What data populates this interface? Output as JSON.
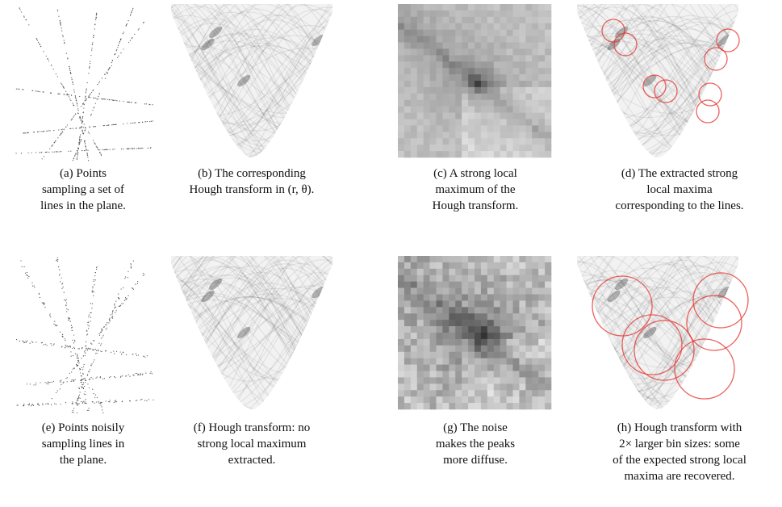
{
  "figures": [
    {
      "lines": [
        "(a) Points",
        "sampling a set of",
        "lines in the plane."
      ]
    },
    {
      "lines": [
        "(b) The corresponding",
        "Hough transform in (r, θ)."
      ]
    },
    {
      "lines": [
        "(c) A strong local",
        "maximum of the",
        "Hough transform."
      ]
    },
    {
      "lines": [
        "(d) The extracted strong",
        "local maxima",
        "corresponding to the lines."
      ]
    },
    {
      "lines": [
        "(e) Points noisily",
        "sampling lines in",
        "the plane."
      ]
    },
    {
      "lines": [
        "(f) Hough transform: no",
        "strong local maximum",
        "extracted."
      ]
    },
    {
      "lines": [
        "(g) The noise",
        "makes the peaks",
        "more diffuse."
      ]
    },
    {
      "lines": [
        "(h) Hough transform with",
        "2× larger bin sizes: some",
        "of the expected strong local",
        "maxima are recovered."
      ]
    }
  ]
}
